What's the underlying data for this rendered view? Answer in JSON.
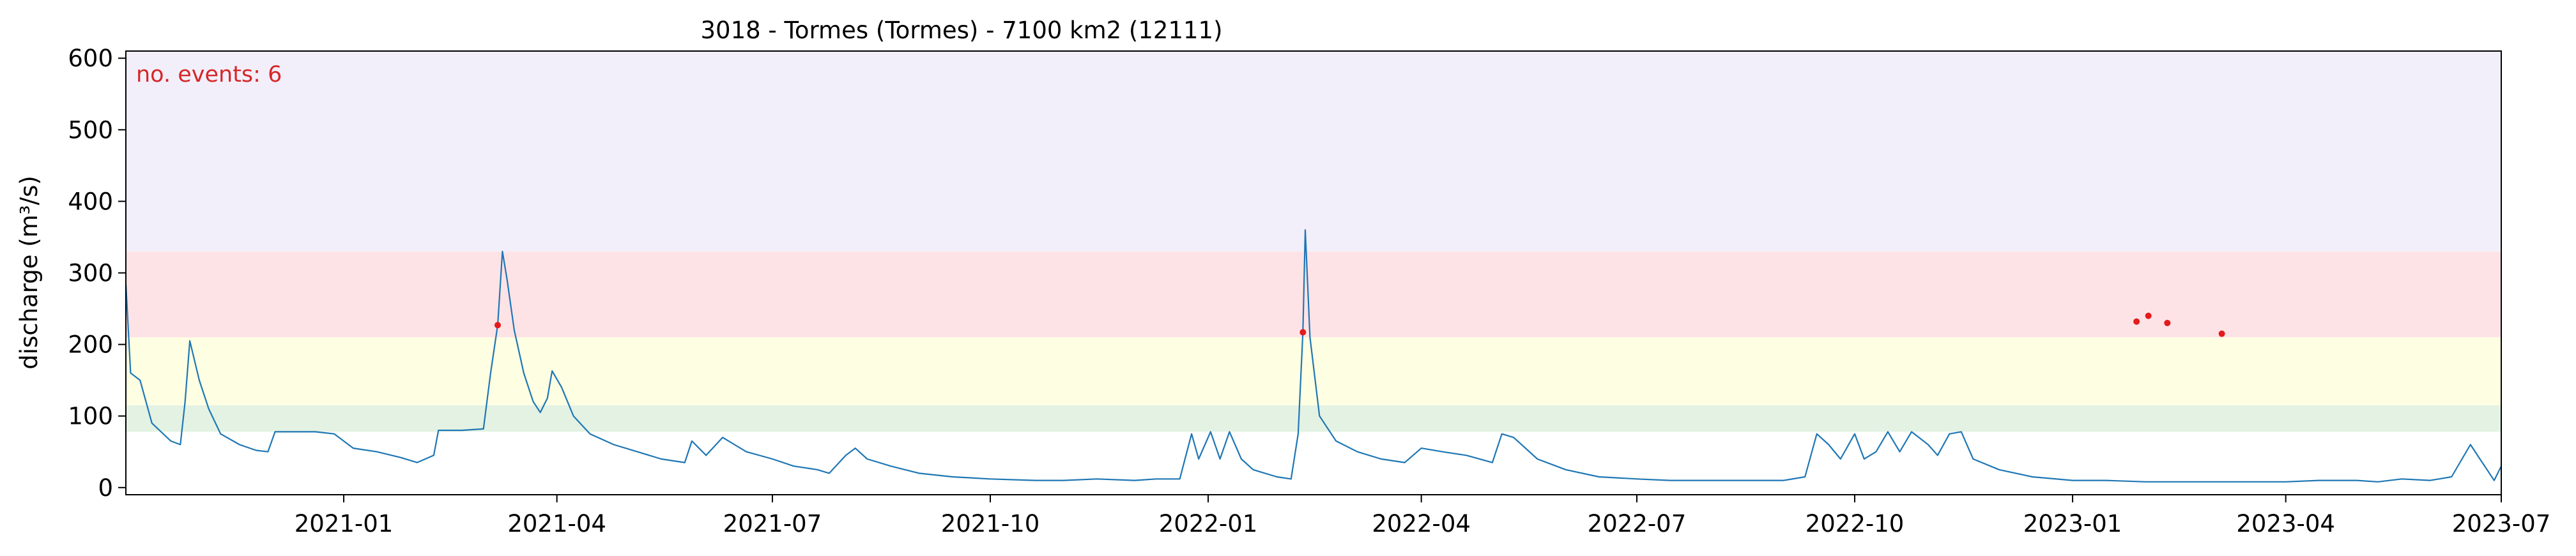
{
  "chart_data": {
    "type": "line",
    "title": "3018 - Tormes (Tormes) - 7100 km2 (12111)",
    "ylabel": "discharge (m³/s)",
    "xlabel": "",
    "xlim": [
      "2020-10-01",
      "2023-07-01"
    ],
    "ylim": [
      -10,
      610
    ],
    "x_ticks": [
      {
        "date": "2021-01-01",
        "label": "2021-01"
      },
      {
        "date": "2021-04-01",
        "label": "2021-04"
      },
      {
        "date": "2021-07-01",
        "label": "2021-07"
      },
      {
        "date": "2021-10-01",
        "label": "2021-10"
      },
      {
        "date": "2022-01-01",
        "label": "2022-01"
      },
      {
        "date": "2022-04-01",
        "label": "2022-04"
      },
      {
        "date": "2022-07-01",
        "label": "2022-07"
      },
      {
        "date": "2022-10-01",
        "label": "2022-10"
      },
      {
        "date": "2023-01-01",
        "label": "2023-01"
      },
      {
        "date": "2023-04-01",
        "label": "2023-04"
      },
      {
        "date": "2023-07-01",
        "label": "2023-07"
      }
    ],
    "y_ticks": [
      0,
      100,
      200,
      300,
      400,
      500,
      600
    ],
    "grid": false,
    "threshold_bands": [
      {
        "from": 78,
        "to": 115,
        "color": "#e3f2e3"
      },
      {
        "from": 115,
        "to": 210,
        "color": "#fefee3"
      },
      {
        "from": 210,
        "to": 330,
        "color": "#fee3e6"
      },
      {
        "from": 330,
        "to": 610,
        "color": "#f2effa"
      }
    ],
    "annotation": {
      "text": "no. events: 6",
      "color": "#d62728",
      "position": "top-left"
    },
    "series": [
      {
        "color": "#1f77b4",
        "points": [
          [
            "2020-10-01",
            285
          ],
          [
            "2020-10-03",
            160
          ],
          [
            "2020-10-07",
            150
          ],
          [
            "2020-10-12",
            90
          ],
          [
            "2020-10-20",
            65
          ],
          [
            "2020-10-24",
            60
          ],
          [
            "2020-10-26",
            120
          ],
          [
            "2020-10-28",
            205
          ],
          [
            "2020-11-01",
            150
          ],
          [
            "2020-11-05",
            110
          ],
          [
            "2020-11-10",
            75
          ],
          [
            "2020-11-18",
            60
          ],
          [
            "2020-11-25",
            52
          ],
          [
            "2020-11-30",
            50
          ],
          [
            "2020-12-03",
            78
          ],
          [
            "2020-12-10",
            78
          ],
          [
            "2020-12-20",
            78
          ],
          [
            "2020-12-28",
            75
          ],
          [
            "2021-01-05",
            55
          ],
          [
            "2021-01-15",
            50
          ],
          [
            "2021-01-25",
            42
          ],
          [
            "2021-02-01",
            35
          ],
          [
            "2021-02-08",
            45
          ],
          [
            "2021-02-10",
            80
          ],
          [
            "2021-02-20",
            80
          ],
          [
            "2021-03-01",
            82
          ],
          [
            "2021-03-04",
            160
          ],
          [
            "2021-03-07",
            227
          ],
          [
            "2021-03-09",
            330
          ],
          [
            "2021-03-11",
            290
          ],
          [
            "2021-03-14",
            220
          ],
          [
            "2021-03-18",
            160
          ],
          [
            "2021-03-22",
            120
          ],
          [
            "2021-03-25",
            105
          ],
          [
            "2021-03-28",
            125
          ],
          [
            "2021-03-30",
            163
          ],
          [
            "2021-04-03",
            140
          ],
          [
            "2021-04-08",
            100
          ],
          [
            "2021-04-15",
            75
          ],
          [
            "2021-04-25",
            60
          ],
          [
            "2021-05-05",
            50
          ],
          [
            "2021-05-15",
            40
          ],
          [
            "2021-05-25",
            35
          ],
          [
            "2021-05-28",
            65
          ],
          [
            "2021-06-03",
            45
          ],
          [
            "2021-06-10",
            70
          ],
          [
            "2021-06-20",
            50
          ],
          [
            "2021-07-01",
            40
          ],
          [
            "2021-07-10",
            30
          ],
          [
            "2021-07-20",
            25
          ],
          [
            "2021-07-25",
            20
          ],
          [
            "2021-08-01",
            45
          ],
          [
            "2021-08-05",
            55
          ],
          [
            "2021-08-10",
            40
          ],
          [
            "2021-08-20",
            30
          ],
          [
            "2021-09-01",
            20
          ],
          [
            "2021-09-15",
            15
          ],
          [
            "2021-10-01",
            12
          ],
          [
            "2021-10-20",
            10
          ],
          [
            "2021-11-01",
            10
          ],
          [
            "2021-11-15",
            12
          ],
          [
            "2021-12-01",
            10
          ],
          [
            "2021-12-10",
            12
          ],
          [
            "2021-12-20",
            12
          ],
          [
            "2021-12-25",
            75
          ],
          [
            "2021-12-28",
            40
          ],
          [
            "2022-01-02",
            78
          ],
          [
            "2022-01-06",
            40
          ],
          [
            "2022-01-10",
            78
          ],
          [
            "2022-01-15",
            40
          ],
          [
            "2022-01-20",
            25
          ],
          [
            "2022-01-25",
            20
          ],
          [
            "2022-01-30",
            15
          ],
          [
            "2022-02-05",
            12
          ],
          [
            "2022-02-08",
            75
          ],
          [
            "2022-02-10",
            217
          ],
          [
            "2022-02-11",
            360
          ],
          [
            "2022-02-13",
            210
          ],
          [
            "2022-02-17",
            100
          ],
          [
            "2022-02-24",
            65
          ],
          [
            "2022-03-05",
            50
          ],
          [
            "2022-03-15",
            40
          ],
          [
            "2022-03-25",
            35
          ],
          [
            "2022-04-01",
            55
          ],
          [
            "2022-04-10",
            50
          ],
          [
            "2022-04-20",
            45
          ],
          [
            "2022-05-01",
            35
          ],
          [
            "2022-05-05",
            75
          ],
          [
            "2022-05-10",
            70
          ],
          [
            "2022-05-20",
            40
          ],
          [
            "2022-06-01",
            25
          ],
          [
            "2022-06-15",
            15
          ],
          [
            "2022-07-01",
            12
          ],
          [
            "2022-07-15",
            10
          ],
          [
            "2022-08-01",
            10
          ],
          [
            "2022-08-15",
            10
          ],
          [
            "2022-09-01",
            10
          ],
          [
            "2022-09-10",
            15
          ],
          [
            "2022-09-15",
            75
          ],
          [
            "2022-09-20",
            60
          ],
          [
            "2022-09-25",
            40
          ],
          [
            "2022-10-01",
            75
          ],
          [
            "2022-10-05",
            40
          ],
          [
            "2022-10-10",
            50
          ],
          [
            "2022-10-15",
            78
          ],
          [
            "2022-10-20",
            50
          ],
          [
            "2022-10-25",
            78
          ],
          [
            "2022-11-01",
            60
          ],
          [
            "2022-11-05",
            45
          ],
          [
            "2022-11-10",
            75
          ],
          [
            "2022-11-15",
            78
          ],
          [
            "2022-11-20",
            40
          ],
          [
            "2022-12-01",
            25
          ],
          [
            "2022-12-15",
            15
          ],
          [
            "2023-01-01",
            10
          ],
          [
            "2023-01-15",
            10
          ],
          [
            "2023-02-01",
            8
          ],
          [
            "2023-02-15",
            8
          ],
          [
            "2023-03-01",
            8
          ],
          [
            "2023-03-15",
            8
          ],
          [
            "2023-04-01",
            8
          ],
          [
            "2023-04-15",
            10
          ],
          [
            "2023-05-01",
            10
          ],
          [
            "2023-05-10",
            8
          ],
          [
            "2023-05-20",
            12
          ],
          [
            "2023-06-01",
            10
          ],
          [
            "2023-06-10",
            15
          ],
          [
            "2023-06-18",
            60
          ],
          [
            "2023-06-22",
            40
          ],
          [
            "2023-06-25",
            25
          ],
          [
            "2023-06-28",
            10
          ],
          [
            "2023-07-01",
            30
          ]
        ]
      }
    ],
    "events": [
      {
        "date": "2021-03-07",
        "value": 227
      },
      {
        "date": "2022-02-10",
        "value": 217
      },
      {
        "date": "2023-01-28",
        "value": 232
      },
      {
        "date": "2023-02-02",
        "value": 240
      },
      {
        "date": "2023-02-10",
        "value": 230
      },
      {
        "date": "2023-03-05",
        "value": 215
      }
    ]
  }
}
